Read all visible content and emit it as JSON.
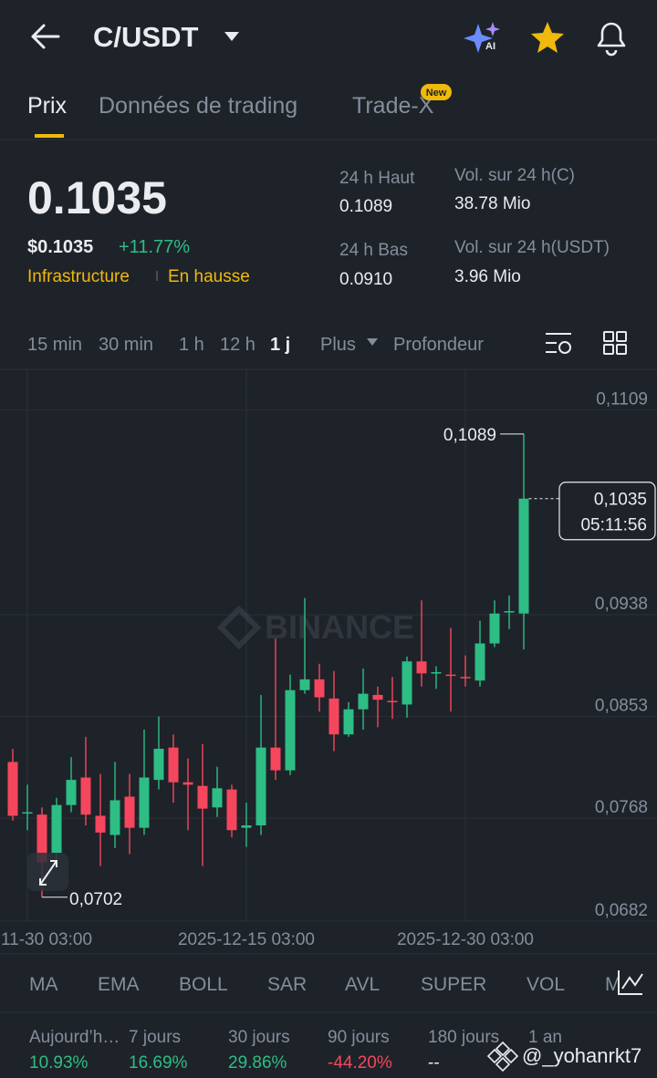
{
  "header": {
    "pair": "C/USDT"
  },
  "tabs": [
    "Prix",
    "Données de trading",
    "Trade-X"
  ],
  "tab_badge": "New",
  "price": {
    "last": "0.1035",
    "usd": "$0.1035",
    "change": "+11.77%",
    "tags": [
      "Infrastructure",
      "En hausse"
    ]
  },
  "stats": [
    {
      "label": "24 h Haut",
      "value": "0.1089"
    },
    {
      "label": "24 h Bas",
      "value": "0.0910"
    },
    {
      "label": "Vol. sur 24 h(C)",
      "value": "38.78 Mio"
    },
    {
      "label": "Vol. sur 24 h(USDT)",
      "value": "3.96 Mio"
    }
  ],
  "intervals": [
    "15 min",
    "30 min",
    "1 h",
    "12 h",
    "1 j",
    "Plus",
    "Profondeur"
  ],
  "chart_data": {
    "type": "candlestick",
    "categories": [
      null,
      "11-30 03:00",
      null,
      null,
      null,
      null,
      null,
      null,
      null,
      null,
      null,
      null,
      null,
      null,
      null,
      null,
      "2025-12-15 03:00",
      null,
      null,
      null,
      null,
      null,
      null,
      null,
      null,
      null,
      null,
      null,
      null,
      null,
      null,
      "2025-12-30 03:00",
      null,
      null,
      null,
      null
    ],
    "open": [
      0.0815,
      0.0772,
      0.0771,
      0.0739,
      0.0779,
      0.0802,
      0.077,
      0.0754,
      0.0786,
      0.076,
      0.08,
      0.0827,
      0.0798,
      0.0795,
      0.0777,
      0.0792,
      0.076,
      0.0762,
      0.0827,
      0.0808,
      0.0875,
      0.0884,
      0.0868,
      0.0838,
      0.0859,
      0.0871,
      0.0866,
      0.0863,
      0.0899,
      0.0889,
      0.0888,
      0.0886,
      0.0883,
      0.0914,
      0.094,
      0.0939
    ],
    "high": [
      0.0826,
      0.0796,
      0.0777,
      0.0785,
      0.0819,
      0.0836,
      0.0805,
      0.0815,
      0.0805,
      0.0842,
      0.0853,
      0.0838,
      0.0818,
      0.083,
      0.0811,
      0.0796,
      0.0781,
      0.0871,
      0.0918,
      0.0888,
      0.0952,
      0.0897,
      0.0891,
      0.0865,
      0.0893,
      0.0878,
      0.0886,
      0.0903,
      0.095,
      0.0895,
      0.0927,
      0.0904,
      0.0933,
      0.095,
      0.0954,
      0.1089
    ],
    "low": [
      0.0766,
      0.0758,
      0.0702,
      0.0731,
      0.0773,
      0.0762,
      0.0728,
      0.0743,
      0.0738,
      0.0754,
      0.0792,
      0.0781,
      0.0758,
      0.0728,
      0.0769,
      0.0752,
      0.0744,
      0.0754,
      0.08,
      0.0804,
      0.0872,
      0.0857,
      0.0824,
      0.0836,
      0.0842,
      0.0844,
      0.0851,
      0.0852,
      0.0878,
      0.0876,
      0.0857,
      0.0878,
      0.0878,
      0.0911,
      0.0926,
      0.0909
    ],
    "close": [
      0.077,
      0.0773,
      0.0731,
      0.0779,
      0.08,
      0.0771,
      0.0756,
      0.0783,
      0.076,
      0.0802,
      0.0826,
      0.0798,
      0.0796,
      0.0776,
      0.0793,
      0.0758,
      0.0762,
      0.0827,
      0.0808,
      0.0875,
      0.0884,
      0.0869,
      0.0838,
      0.0859,
      0.0872,
      0.0867,
      0.0865,
      0.0899,
      0.0889,
      0.089,
      0.0887,
      0.0885,
      0.0914,
      0.0939,
      0.0941,
      0.1035
    ],
    "up_color": "#2ebd85",
    "down_color": "#f6465d",
    "ylim": [
      0.0682,
      0.1143
    ],
    "yticks": [
      {
        "value": 0.1109,
        "label": "0,1109"
      },
      {
        "value": 0.0938,
        "label": "0,0938"
      },
      {
        "value": 0.0853,
        "label": "0,0853"
      },
      {
        "value": 0.0768,
        "label": "0,0768"
      },
      {
        "value": 0.0682,
        "label": "0,0682"
      }
    ],
    "grid": true,
    "high_label": "0,1089",
    "low_label": "0,0702",
    "price_label": "0,1035",
    "countdown": "05:11:56",
    "watermark": "BINANCE"
  },
  "indicators": [
    "MA",
    "EMA",
    "BOLL",
    "SAR",
    "AVL",
    "SUPER",
    "VOL",
    "M"
  ],
  "performance": [
    {
      "label": "Aujourd’h…",
      "value": "10.93%",
      "color": "#2ebd85"
    },
    {
      "label": "7 jours",
      "value": "16.69%",
      "color": "#2ebd85"
    },
    {
      "label": "30 jours",
      "value": "29.86%",
      "color": "#2ebd85"
    },
    {
      "label": "90 jours",
      "value": "-44.20%",
      "color": "#f6465d"
    },
    {
      "label": "180 jours",
      "value": "--",
      "color": "#eaecef"
    },
    {
      "label": "1 an",
      "value": null,
      "color": "#eaecef"
    }
  ],
  "watermark": "@_yohanrkt7"
}
